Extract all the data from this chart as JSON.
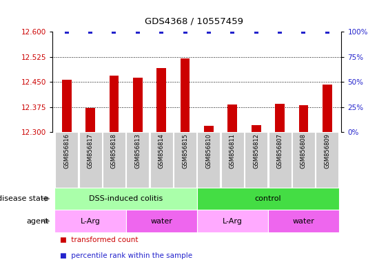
{
  "title": "GDS4368 / 10557459",
  "samples": [
    "GSM856816",
    "GSM856817",
    "GSM856818",
    "GSM856813",
    "GSM856814",
    "GSM856815",
    "GSM856810",
    "GSM856811",
    "GSM856812",
    "GSM856807",
    "GSM856808",
    "GSM856809"
  ],
  "bar_values": [
    12.457,
    12.372,
    12.468,
    12.462,
    12.492,
    12.519,
    12.318,
    12.383,
    12.321,
    12.385,
    12.38,
    12.442
  ],
  "percentile_values": [
    100,
    100,
    100,
    100,
    100,
    100,
    100,
    100,
    100,
    100,
    100,
    100
  ],
  "bar_color": "#cc0000",
  "percentile_color": "#2222cc",
  "ylim_left": [
    12.3,
    12.6
  ],
  "ylim_right": [
    0,
    100
  ],
  "yticks_left": [
    12.3,
    12.375,
    12.45,
    12.525,
    12.6
  ],
  "yticks_right": [
    0,
    25,
    50,
    75,
    100
  ],
  "disease_state_groups": [
    {
      "label": "DSS-induced colitis",
      "start": 0,
      "end": 6,
      "color": "#aaffaa"
    },
    {
      "label": "control",
      "start": 6,
      "end": 12,
      "color": "#44dd44"
    }
  ],
  "agent_groups": [
    {
      "label": "L-Arg",
      "start": 0,
      "end": 3,
      "color": "#ffaaff"
    },
    {
      "label": "water",
      "start": 3,
      "end": 6,
      "color": "#ee66ee"
    },
    {
      "label": "L-Arg",
      "start": 6,
      "end": 9,
      "color": "#ffaaff"
    },
    {
      "label": "water",
      "start": 9,
      "end": 12,
      "color": "#ee66ee"
    }
  ],
  "legend_items": [
    {
      "label": "transformed count",
      "color": "#cc0000"
    },
    {
      "label": "percentile rank within the sample",
      "color": "#2222cc"
    }
  ],
  "disease_state_label": "disease state",
  "agent_label": "agent",
  "bar_width": 0.4,
  "sample_box_color": "#d0d0d0",
  "fig_width": 5.63,
  "fig_height": 3.84,
  "fig_dpi": 100
}
